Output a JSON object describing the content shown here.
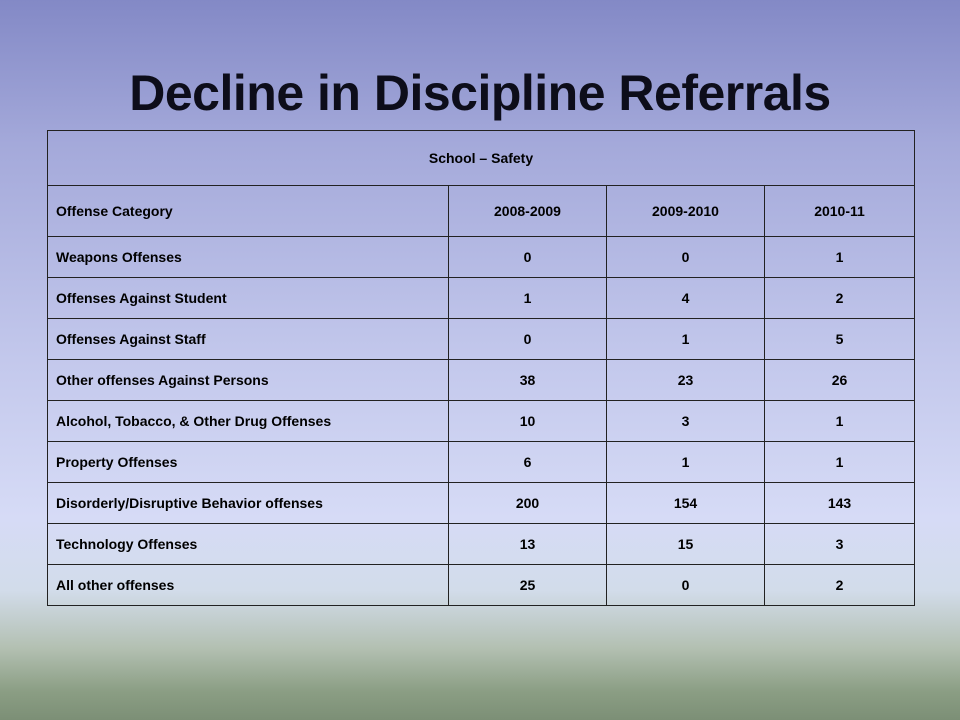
{
  "slide": {
    "title": "Decline in Discipline Referrals"
  },
  "table": {
    "caption": "School – Safety",
    "headers": [
      "Offense Category",
      "2008-2009",
      "2009-2010",
      "2010-11"
    ],
    "rows": [
      {
        "category": "Weapons Offenses",
        "y2008_2009": "0",
        "y2009_2010": "0",
        "y2010_11": "1"
      },
      {
        "category": "Offenses Against Student",
        "y2008_2009": "1",
        "y2009_2010": "4",
        "y2010_11": "2"
      },
      {
        "category": "Offenses Against Staff",
        "y2008_2009": "0",
        "y2009_2010": "1",
        "y2010_11": "5"
      },
      {
        "category": "Other offenses Against Persons",
        "y2008_2009": "38",
        "y2009_2010": "23",
        "y2010_11": "26"
      },
      {
        "category": "Alcohol, Tobacco, & Other Drug Offenses",
        "y2008_2009": "10",
        "y2009_2010": "3",
        "y2010_11": "1"
      },
      {
        "category": "Property Offenses",
        "y2008_2009": "6",
        "y2009_2010": "1",
        "y2010_11": "1"
      },
      {
        "category": "Disorderly/Disruptive Behavior offenses",
        "y2008_2009": "200",
        "y2009_2010": "154",
        "y2010_11": "143"
      },
      {
        "category": "Technology Offenses",
        "y2008_2009": "13",
        "y2009_2010": "15",
        "y2010_11": "3"
      },
      {
        "category": "All other offenses",
        "y2008_2009": "25",
        "y2009_2010": "0",
        "y2010_11": "2"
      }
    ]
  }
}
